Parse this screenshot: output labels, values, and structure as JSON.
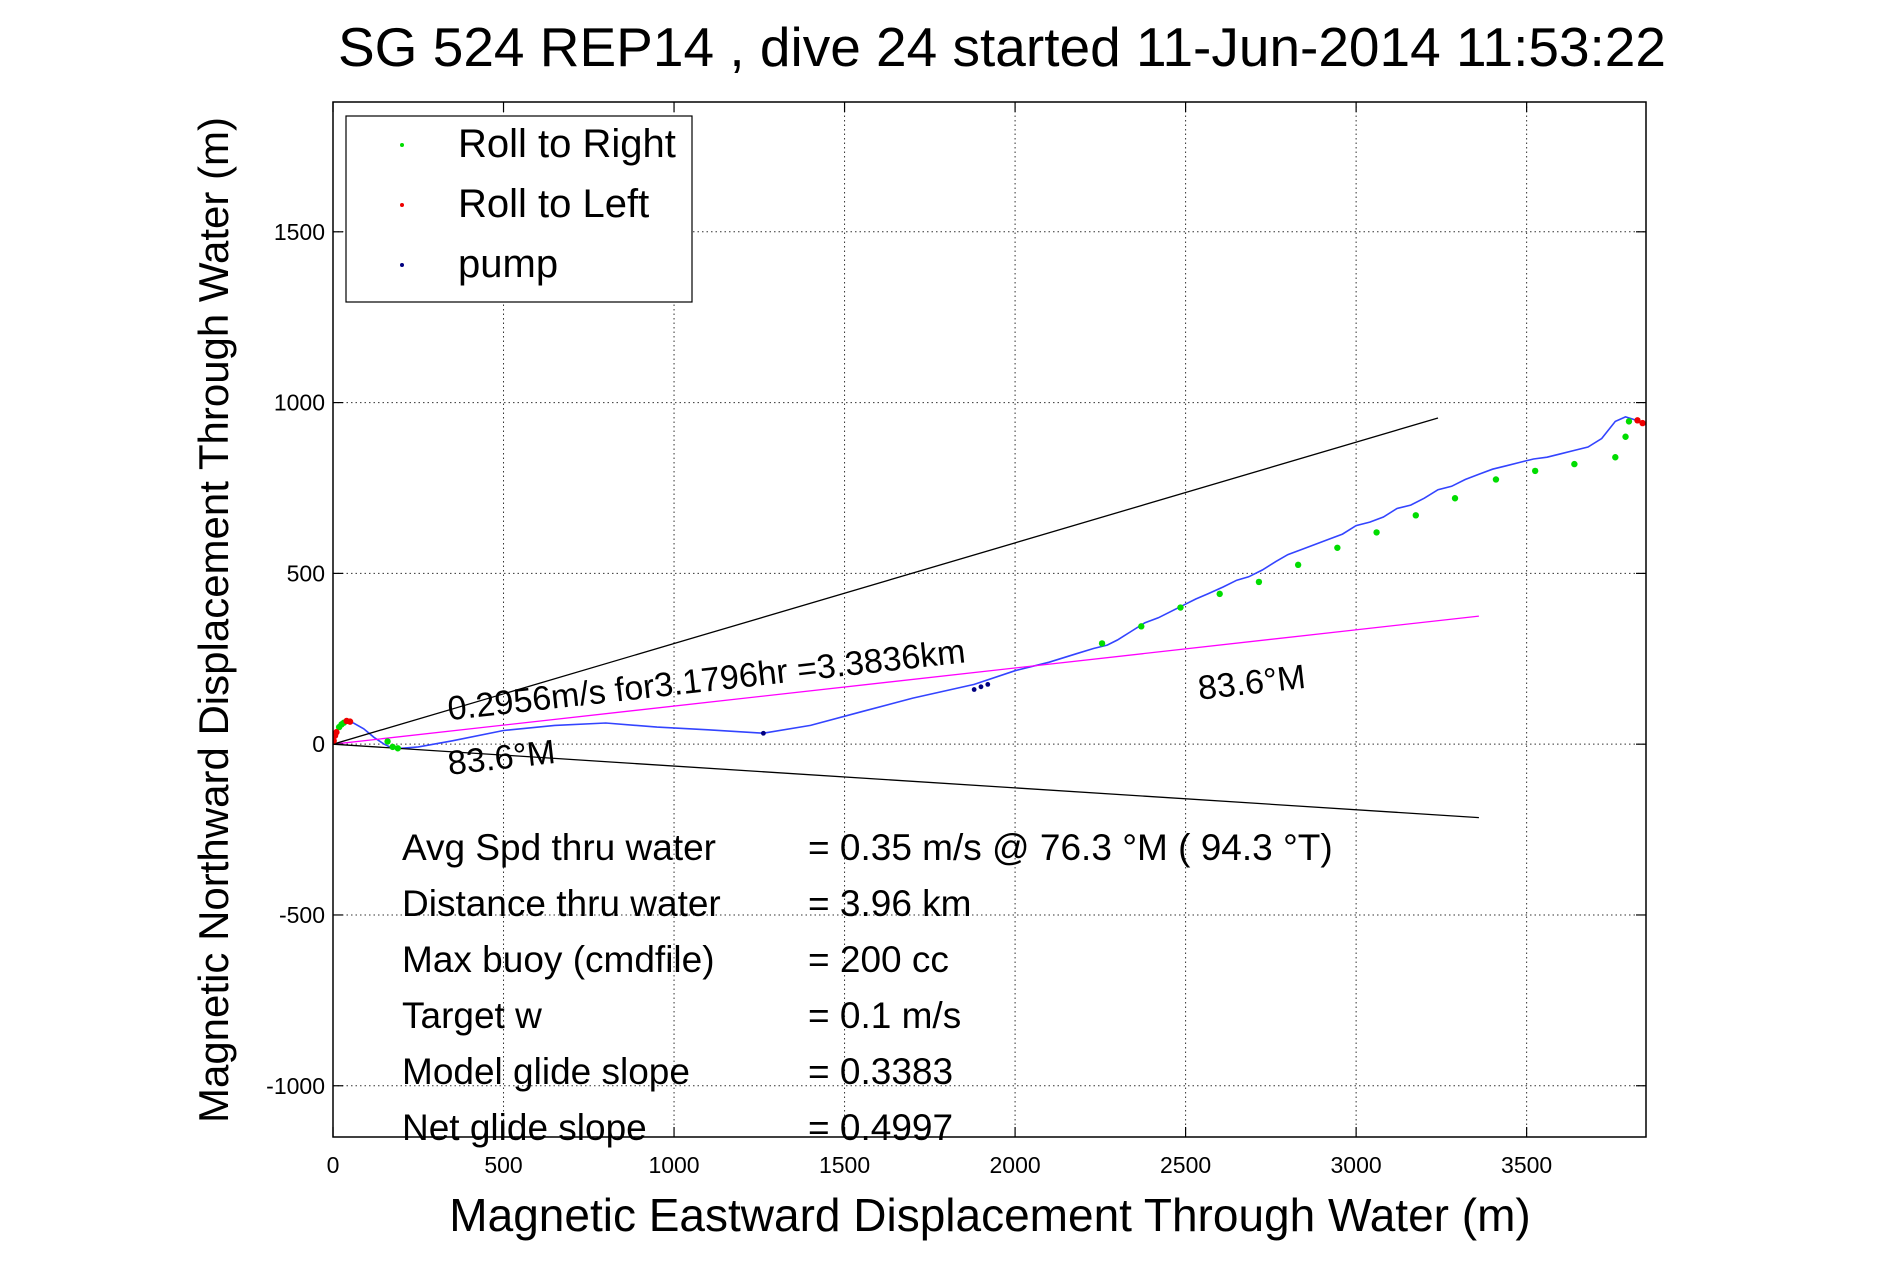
{
  "chart_data": {
    "type": "line",
    "title": "SG 524   REP14  , dive 24 started 11-Jun-2014 11:53:22",
    "xlabel": "Magnetic Eastward Displacement Through Water (m)",
    "ylabel": "Magnetic Northward Displacement Through Water (m)",
    "xlim": [
      0,
      3850
    ],
    "ylim": [
      -1150,
      1880
    ],
    "xticks": [
      0,
      500,
      1000,
      1500,
      2000,
      2500,
      3000,
      3500
    ],
    "yticks": [
      -1000,
      -500,
      0,
      500,
      1000,
      1500
    ],
    "xtick_labels": [
      "0",
      "500",
      "1000",
      "1500",
      "2000",
      "2500",
      "3000",
      "3500"
    ],
    "ytick_labels": [
      "-1000",
      "-500",
      "0",
      "500",
      "1000",
      "1500"
    ],
    "grid": true,
    "legend_position": "top-left",
    "legend": [
      {
        "label": "Roll to Right",
        "color": "#00dd00"
      },
      {
        "label": "Roll to Left",
        "color": "#ee0000"
      },
      {
        "label": "pump",
        "color": "#000080"
      }
    ],
    "series": [
      {
        "name": "track",
        "color": "#3344ff",
        "x": [
          0,
          15,
          35,
          60,
          90,
          120,
          150,
          175,
          200,
          250,
          350,
          500,
          650,
          800,
          950,
          1100,
          1262,
          1400,
          1550,
          1700,
          1880,
          2000,
          2100,
          2180,
          2230,
          2270,
          2300,
          2340,
          2380,
          2420,
          2450,
          2490,
          2530,
          2565,
          2610,
          2650,
          2685,
          2725,
          2765,
          2800,
          2840,
          2880,
          2920,
          2960,
          3000,
          3040,
          3080,
          3120,
          3160,
          3200,
          3240,
          3280,
          3320,
          3360,
          3400,
          3440,
          3480,
          3520,
          3560,
          3600,
          3640,
          3680,
          3720,
          3760,
          3790,
          3810,
          3830,
          3850
        ],
        "y": [
          0,
          45,
          65,
          62,
          45,
          20,
          0,
          -12,
          -12,
          -8,
          10,
          40,
          55,
          62,
          50,
          42,
          32,
          55,
          95,
          135,
          175,
          215,
          240,
          265,
          280,
          290,
          305,
          330,
          355,
          370,
          385,
          405,
          425,
          440,
          460,
          480,
          490,
          510,
          535,
          555,
          570,
          585,
          600,
          615,
          640,
          650,
          665,
          690,
          700,
          720,
          745,
          755,
          775,
          790,
          805,
          815,
          825,
          835,
          840,
          850,
          860,
          870,
          895,
          945,
          958,
          952,
          945,
          935
        ]
      },
      {
        "name": "heading line",
        "color": "#ff00ff",
        "x": [
          0,
          3360
        ],
        "y": [
          0,
          375
        ]
      },
      {
        "name": "upper bound",
        "color": "#000000",
        "x": [
          0,
          3240
        ],
        "y": [
          0,
          955
        ]
      },
      {
        "name": "lower bound",
        "color": "#000000",
        "x": [
          0,
          3360
        ],
        "y": [
          0,
          -215
        ]
      }
    ],
    "markers": {
      "roll_right_x": [
        18,
        25,
        32,
        160,
        175,
        190,
        2255,
        2370,
        2485,
        2600,
        2715,
        2830,
        2945,
        3060,
        3175,
        3290,
        3410,
        3525,
        3640,
        3760,
        3790,
        3800
      ],
      "roll_right_y": [
        50,
        58,
        63,
        8,
        -8,
        -12,
        295,
        345,
        400,
        440,
        475,
        525,
        575,
        620,
        670,
        720,
        775,
        800,
        820,
        840,
        900,
        945
      ],
      "roll_left_x": [
        2,
        6,
        10,
        40,
        50,
        3825,
        3840
      ],
      "roll_left_y": [
        10,
        25,
        35,
        68,
        66,
        948,
        940
      ],
      "pump_x": [
        1262,
        1880,
        1900,
        1920
      ],
      "pump_y": [
        32,
        160,
        168,
        175
      ]
    },
    "annotations": [
      {
        "text": "0.2956m/s for3.1796hr =3.3836km",
        "x": 340,
        "y": 70,
        "rotation_deg": -6.4
      },
      {
        "text": "83.6°M",
        "x": 340,
        "y": -90,
        "rotation_deg": -6.4
      },
      {
        "text": "83.6°M",
        "x": 2540,
        "y": 130,
        "rotation_deg": -6.4
      }
    ],
    "stats": [
      {
        "label": "Avg Spd thru water",
        "value": "=  0.35 m/s @  76.3 °M ( 94.3 °T)"
      },
      {
        "label": "Distance thru water",
        "value": "=  3.96 km"
      },
      {
        "label": "Max buoy (cmdfile)",
        "value": "= 200 cc"
      },
      {
        "label": "Target w",
        "value": "= 0.1 m/s"
      },
      {
        "label": "Model glide slope",
        "value": "= 0.3383"
      },
      {
        "label": "Net glide slope",
        "value": "= 0.4997"
      }
    ]
  }
}
